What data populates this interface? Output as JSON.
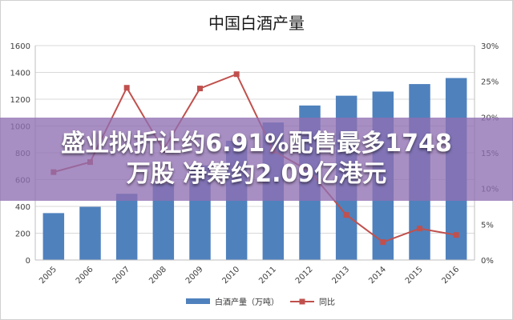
{
  "overlay": {
    "line1": "盛业拟折让约6.91%配售最多1748",
    "line2": "万股 净筹约2.09亿港元"
  },
  "colors": {
    "bar": "#4f81bd",
    "line": "#c0504d",
    "overlay": "#8f6fb2",
    "grid": "#d9d9d9",
    "axis_text": "#404040"
  },
  "chart_data": {
    "type": "bar+line",
    "title": "中国白酒产量",
    "categories": [
      "2005",
      "2006",
      "2007",
      "2008",
      "2009",
      "2010",
      "2011",
      "2012",
      "2013",
      "2014",
      "2015",
      "2016"
    ],
    "series": [
      {
        "name": "白酒产量（万吨）",
        "kind": "bar",
        "axis": "left",
        "values": [
          350,
          397,
          494,
          570,
          706,
          890,
          1026,
          1153,
          1226,
          1257,
          1313,
          1358
        ]
      },
      {
        "name": "同比",
        "kind": "line",
        "axis": "right",
        "values": [
          12.3,
          13.7,
          24.1,
          15.4,
          24.0,
          26.0,
          15.3,
          12.4,
          6.3,
          2.5,
          4.4,
          3.5
        ]
      }
    ],
    "y_left": {
      "min": 0,
      "max": 1600,
      "ticks": [
        "0",
        "200",
        "400",
        "600",
        "800",
        "1000",
        "1200",
        "1400",
        "1600"
      ]
    },
    "y_right": {
      "min": 0,
      "max": 30,
      "ticks": [
        "0%",
        "5%",
        "10%",
        "15%",
        "20%",
        "25%",
        "30%"
      ]
    },
    "legend": [
      "白酒产量（万吨）",
      "同比"
    ],
    "legend_position": "bottom",
    "grid": true
  }
}
